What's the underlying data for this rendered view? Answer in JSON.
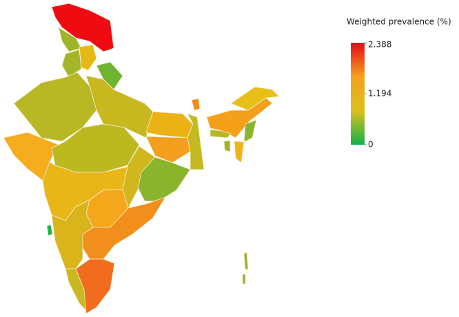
{
  "legend": {
    "title": "Weighted prevalence (%)",
    "ticks": [
      2.388,
      1.194,
      0
    ],
    "colors": [
      "#e8071b",
      "#f5a21c",
      "#d9c01b",
      "#12b14a"
    ]
  }
}
